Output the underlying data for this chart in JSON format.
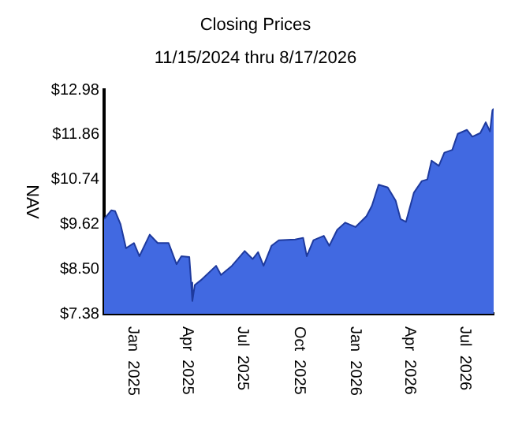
{
  "chart_data": {
    "type": "area",
    "title": "Closing Prices",
    "subtitle": "11/15/2024 thru 8/17/2026",
    "ylabel": "NAV",
    "x": [
      "2024-11-15",
      "2024-11-27",
      "2024-12-03",
      "2024-12-12",
      "2024-12-21",
      "2025-01-03",
      "2025-01-12",
      "2025-01-29",
      "2025-02-11",
      "2025-03-01",
      "2025-03-14",
      "2025-03-22",
      "2025-04-04",
      "2025-04-07",
      "2025-04-09",
      "2025-04-13",
      "2025-04-23",
      "2025-05-18",
      "2025-05-26",
      "2025-06-13",
      "2025-07-04",
      "2025-07-17",
      "2025-07-26",
      "2025-08-04",
      "2025-08-17",
      "2025-08-29",
      "2025-09-25",
      "2025-10-08",
      "2025-10-14",
      "2025-10-25",
      "2025-11-11",
      "2025-11-20",
      "2025-12-03",
      "2025-12-16",
      "2026-01-02",
      "2026-01-20",
      "2026-01-29",
      "2026-02-09",
      "2026-02-24",
      "2026-03-09",
      "2026-03-17",
      "2026-03-26",
      "2026-04-08",
      "2026-04-21",
      "2026-04-30",
      "2026-05-07",
      "2026-05-19",
      "2026-05-28",
      "2026-06-10",
      "2026-06-19",
      "2026-07-04",
      "2026-07-13",
      "2026-07-26",
      "2026-08-04",
      "2026-08-11",
      "2026-08-15",
      "2026-08-17"
    ],
    "series": [
      {
        "color": "#4169e1",
        "values": [
          9.75,
          9.97,
          9.95,
          9.62,
          9.02,
          9.15,
          8.82,
          9.36,
          9.15,
          9.15,
          8.62,
          8.82,
          8.8,
          8.16,
          7.7,
          8.1,
          8.22,
          8.58,
          8.35,
          8.58,
          8.95,
          8.75,
          8.92,
          8.58,
          9.08,
          9.22,
          9.24,
          9.28,
          8.82,
          9.22,
          9.33,
          9.08,
          9.48,
          9.66,
          9.55,
          9.82,
          10.08,
          10.61,
          10.54,
          10.21,
          9.75,
          9.68,
          10.41,
          10.7,
          10.74,
          11.21,
          11.08,
          11.41,
          11.48,
          11.88,
          11.98,
          11.81,
          11.9,
          12.17,
          11.94,
          12.47,
          12.51
        ]
      }
    ],
    "xlim": [
      "2024-11-15",
      "2026-08-17"
    ],
    "xticks": [
      {
        "value": "2025-01-01",
        "label": "Jan  2025"
      },
      {
        "value": "2025-04-01",
        "label": "Apr  2025"
      },
      {
        "value": "2025-07-01",
        "label": "Jul  2025"
      },
      {
        "value": "2025-10-01",
        "label": "Oct  2025"
      },
      {
        "value": "2026-01-01",
        "label": "Jan  2026"
      },
      {
        "value": "2026-04-01",
        "label": "Apr  2026"
      },
      {
        "value": "2026-07-01",
        "label": "Jul  2026"
      }
    ],
    "ylim": [
      7.38,
      12.98
    ],
    "yticks": [
      {
        "value": 7.38,
        "label": "$7.38"
      },
      {
        "value": 8.5,
        "label": "$8.50"
      },
      {
        "value": 9.62,
        "label": "$9.62"
      },
      {
        "value": 10.74,
        "label": "$10.74"
      },
      {
        "value": 11.86,
        "label": "$11.86"
      },
      {
        "value": 12.98,
        "label": "$12.98"
      }
    ],
    "grid": false,
    "legend": false
  }
}
